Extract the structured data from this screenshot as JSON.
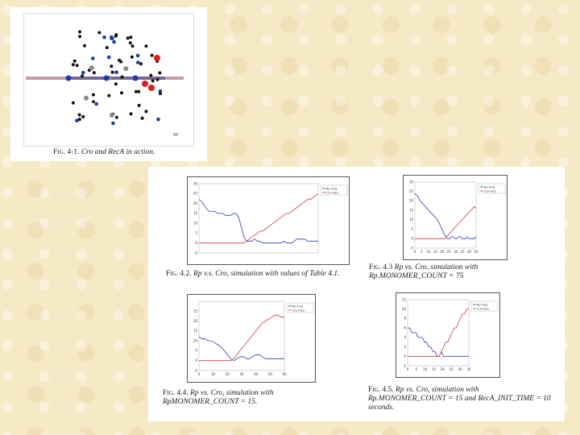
{
  "fig41": {
    "caption_num": "Fig. 4-1.",
    "caption_text": "Cro and RecA in action.",
    "scale_label": "50",
    "colors": {
      "dna_band": "#c89aa8",
      "cro": "#111111",
      "rp": "#1e3aa8",
      "reca": "#e02020",
      "other": "#8a8a8a"
    }
  },
  "fig42": {
    "caption_num": "Fig. 4.2.",
    "caption_text": "Rp v.s. Cro, simulation with values of Table 4.1."
  },
  "fig43": {
    "caption_num": "Fig. 4.3",
    "caption_text1": "Rp vs. Cro, simulation with",
    "caption_text2": "Rp.MONOMER_COUNT = 75"
  },
  "fig44": {
    "caption_num": "Fig. 4.4.",
    "caption_text1": "Rp vs. Cro, simulation with",
    "caption_text2": "RpMONOMER_COUNT = 15."
  },
  "fig45": {
    "caption_num": "Fig. 4.5.",
    "caption_text1": "Rp vs. Cro, simulation with",
    "caption_text2": "Rp.MONOMER_COUNT = 15 and RecA_INIT_TIME = 10",
    "caption_text3": "seconds."
  },
  "chart_data": [
    {
      "type": "line",
      "id": "c42",
      "legend": [
        "Rp Freq",
        "Cro Freq"
      ],
      "ylim": [
        -5,
        30
      ],
      "yticks": [
        "-5",
        "0",
        "5",
        "10",
        "15",
        "20",
        "25",
        "30"
      ],
      "series": [
        {
          "values": [
            22,
            21,
            19,
            17,
            16,
            16,
            16,
            15,
            15,
            15,
            14,
            14,
            14,
            15,
            15,
            13,
            8,
            3,
            1,
            1,
            1,
            2,
            1,
            1,
            0,
            0,
            0,
            0,
            0,
            0,
            0,
            0,
            1,
            0,
            0,
            0,
            1,
            2,
            2,
            2,
            2,
            1,
            1,
            1,
            1,
            1
          ],
          "color": "#2b3fa8"
        },
        {
          "values": [
            0,
            0,
            0,
            0,
            0,
            0,
            0,
            0,
            0,
            0,
            0,
            0,
            0,
            0,
            0,
            0,
            0,
            0,
            1,
            2,
            3,
            4,
            5,
            6,
            6,
            7,
            8,
            9,
            10,
            11,
            12,
            13,
            14,
            15,
            15,
            16,
            17,
            18,
            19,
            20,
            21,
            22,
            22,
            23,
            24,
            25
          ],
          "color": "#d23b3b"
        }
      ]
    },
    {
      "type": "line",
      "id": "c43",
      "legend": [
        "Rp Freq",
        "Cro Freq"
      ],
      "ylim": [
        -5,
        30
      ],
      "yticks": [
        "-5",
        "0",
        "5",
        "10",
        "15",
        "20",
        "25",
        "30"
      ],
      "xticks": [
        "0",
        "5",
        "10",
        "15",
        "20",
        "25",
        "30",
        "35",
        "40",
        "45"
      ],
      "series": [
        {
          "values": [
            24,
            23,
            22,
            20,
            19,
            18,
            17,
            16,
            15,
            14,
            13,
            12,
            11,
            10,
            8,
            6,
            4,
            2,
            1,
            0,
            0,
            1,
            1,
            0,
            0,
            1,
            1,
            0,
            0,
            0,
            1,
            0,
            0,
            0,
            0,
            1
          ],
          "color": "#2b3fa8"
        },
        {
          "values": [
            0,
            0,
            0,
            0,
            0,
            0,
            0,
            0,
            0,
            0,
            0,
            0,
            0,
            0,
            0,
            0,
            0,
            0,
            1,
            2,
            3,
            4,
            5,
            6,
            7,
            8,
            9,
            10,
            11,
            12,
            13,
            14,
            15,
            16,
            17,
            16
          ],
          "color": "#d23b3b"
        }
      ]
    },
    {
      "type": "line",
      "id": "c44",
      "legend": [
        "Rp Freq",
        "Cro Freq"
      ],
      "ylim": [
        -5,
        30
      ],
      "yticks": [
        "-5",
        "0",
        "5",
        "10",
        "15",
        "20",
        "25"
      ],
      "xticks": [
        "0",
        "10",
        "20",
        "30",
        "40",
        "50",
        "60"
      ],
      "series": [
        {
          "values": [
            12,
            11,
            11,
            10,
            10,
            9,
            8,
            7,
            5,
            3,
            1,
            0,
            1,
            2,
            2,
            1,
            1,
            2,
            3,
            3,
            2,
            1,
            1,
            1,
            1,
            1,
            1,
            1
          ],
          "color": "#2b3fa8"
        },
        {
          "values": [
            0,
            0,
            0,
            0,
            0,
            0,
            0,
            0,
            0,
            0,
            0,
            1,
            3,
            5,
            7,
            9,
            11,
            13,
            15,
            17,
            19,
            20,
            21,
            22,
            23,
            23,
            22,
            22
          ],
          "color": "#d23b3b"
        }
      ]
    },
    {
      "type": "line",
      "id": "c45",
      "legend": [
        "Rp Freq",
        "Cro Freq"
      ],
      "ylim": [
        -2,
        12
      ],
      "yticks": [
        "-2",
        "0",
        "2",
        "4",
        "6",
        "8",
        "10",
        "12"
      ],
      "xticks": [
        "0",
        "5",
        "10",
        "15",
        "20",
        "25",
        "30",
        "35"
      ],
      "series": [
        {
          "values": [
            6,
            6,
            5,
            5,
            5,
            4,
            4,
            4,
            3,
            3,
            2,
            2,
            1,
            1,
            0,
            0,
            1,
            0,
            0,
            0,
            0,
            0,
            0,
            0,
            0,
            0,
            0,
            0,
            0,
            0
          ],
          "color": "#2b3fa8"
        },
        {
          "values": [
            0,
            0,
            0,
            0,
            0,
            0,
            0,
            0,
            0,
            0,
            0,
            0,
            0,
            0,
            0,
            0,
            1,
            2,
            3,
            3,
            4,
            5,
            6,
            6,
            7,
            8,
            9,
            9,
            10,
            10
          ],
          "color": "#d23b3b"
        }
      ]
    }
  ]
}
